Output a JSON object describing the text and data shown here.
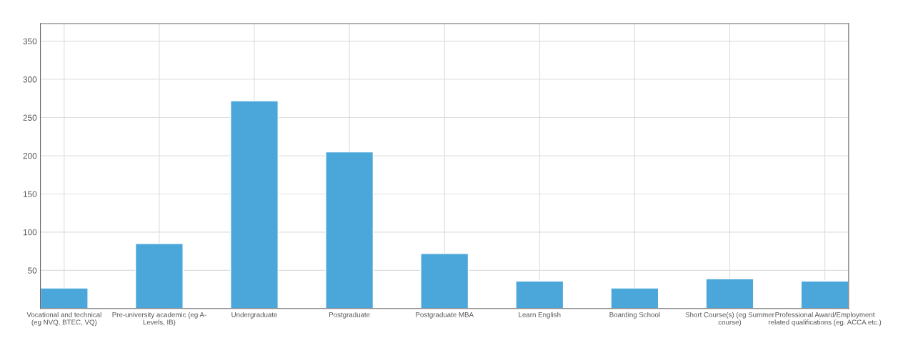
{
  "chart_data": {
    "type": "bar",
    "categories": [
      "Vocational and technical\n(eg NVQ, BTEC, VQ)",
      "Pre-university academic (eg A-\nLevels, IB)",
      "Undergraduate",
      "Postgraduate",
      "Postgraduate MBA",
      "Learn English",
      "Boarding School",
      "Short Course(s) (eg Summer\ncourse)",
      "Professional Award/Employment\nrelated qualifications (eg. ACCA etc.)"
    ],
    "values": [
      27,
      85,
      272,
      205,
      72,
      36,
      27,
      39,
      36
    ],
    "color": "#4ba6da",
    "ylim": [
      0,
      373
    ],
    "yticks": [
      50,
      100,
      150,
      200,
      250,
      300,
      350
    ],
    "grid": true
  }
}
